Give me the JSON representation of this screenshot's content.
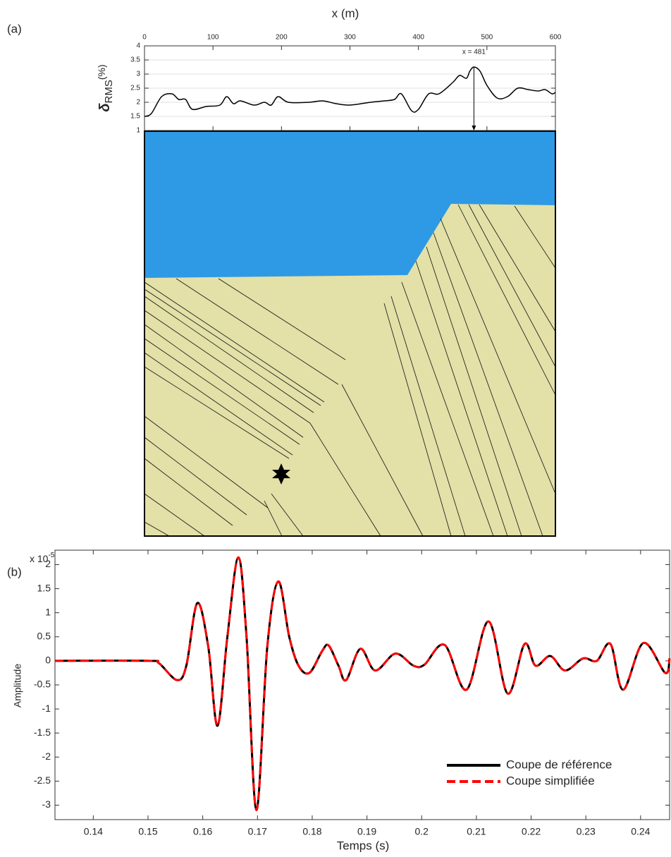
{
  "chart_data": [
    {
      "type": "line",
      "panel_label": "(a)",
      "x_label": "x (m)",
      "y_label_parts": [
        "δ",
        "RMS",
        "(%)"
      ],
      "xlim": [
        0,
        600
      ],
      "xticks": [
        0,
        100,
        200,
        300,
        400,
        500,
        600
      ],
      "ylim": [
        1,
        4
      ],
      "yticks": [
        1,
        1.5,
        2,
        2.5,
        3,
        3.5,
        4
      ],
      "grid": true,
      "annotation": {
        "text": "x = 481",
        "x": 481
      },
      "series": [
        {
          "name": "δRMS",
          "color": "#000000",
          "x": [
            0,
            10,
            25,
            40,
            50,
            60,
            70,
            90,
            110,
            120,
            130,
            140,
            160,
            175,
            185,
            195,
            210,
            240,
            260,
            280,
            300,
            330,
            350,
            365,
            375,
            390,
            400,
            415,
            430,
            450,
            460,
            470,
            475,
            481,
            490,
            500,
            515,
            530,
            545,
            560,
            575,
            585,
            595,
            600
          ],
          "values": [
            1.5,
            1.6,
            2.2,
            2.3,
            2.1,
            2.1,
            1.75,
            1.85,
            1.9,
            2.2,
            1.95,
            2.05,
            1.9,
            2.0,
            1.9,
            2.2,
            2.0,
            2.0,
            2.05,
            1.95,
            1.9,
            2.0,
            2.05,
            2.1,
            2.3,
            1.7,
            1.75,
            2.3,
            2.3,
            2.7,
            2.95,
            2.85,
            3.1,
            3.25,
            3.1,
            2.6,
            2.15,
            2.2,
            2.5,
            2.45,
            2.4,
            2.45,
            2.3,
            2.35
          ]
        }
      ]
    },
    {
      "type": "line",
      "panel_label": "(b)",
      "x_label": "Temps (s)",
      "y_label": "Amplitude",
      "exponent_label": {
        "base": "x 10",
        "exponent": "-5"
      },
      "xlim": [
        0.133,
        0.2453
      ],
      "xticks": [
        0.14,
        0.15,
        0.16,
        0.17,
        0.18,
        0.19,
        0.2,
        0.21,
        0.22,
        0.23,
        0.24
      ],
      "ylim": [
        -3.3,
        2.3
      ],
      "yticks": [
        2,
        1.5,
        1,
        0.5,
        0,
        -0.5,
        -1,
        -1.5,
        -2,
        -2.5,
        -3
      ],
      "legend": "lower right",
      "series": [
        {
          "name": "Coupe de référence",
          "color": "#000000",
          "style": "solid",
          "x": [
            0.133,
            0.15,
            0.152,
            0.1553,
            0.157,
            0.159,
            0.161,
            0.1627,
            0.1645,
            0.1665,
            0.168,
            0.1698,
            0.1718,
            0.1738,
            0.1758,
            0.1775,
            0.1795,
            0.1818,
            0.183,
            0.1848,
            0.1862,
            0.1888,
            0.1915,
            0.1952,
            0.1985,
            0.2005,
            0.2042,
            0.2082,
            0.2122,
            0.2157,
            0.2188,
            0.2208,
            0.2235,
            0.2262,
            0.2295,
            0.232,
            0.2345,
            0.2368,
            0.2405,
            0.2445,
            0.2453
          ],
          "values": [
            0,
            0,
            -0.05,
            -0.4,
            -0.1,
            1.2,
            0.3,
            -1.35,
            0.5,
            2.15,
            0.5,
            -3.1,
            0.3,
            1.65,
            0.5,
            -0.1,
            -0.25,
            0.2,
            0.32,
            -0.1,
            -0.4,
            0.25,
            -0.2,
            0.15,
            -0.1,
            -0.08,
            0.33,
            -0.6,
            0.82,
            -0.68,
            0.35,
            -0.1,
            0.1,
            -0.2,
            0.05,
            0.0,
            0.35,
            -0.6,
            0.37,
            -0.25,
            0.05
          ]
        },
        {
          "name": "Coupe simplifiée",
          "color": "#ff0000",
          "style": "dashed",
          "x": [
            0.133,
            0.15,
            0.152,
            0.1553,
            0.157,
            0.159,
            0.161,
            0.1627,
            0.1645,
            0.1665,
            0.168,
            0.1698,
            0.1718,
            0.1738,
            0.1758,
            0.1775,
            0.1795,
            0.1818,
            0.183,
            0.1848,
            0.1862,
            0.1888,
            0.1915,
            0.1952,
            0.1985,
            0.2005,
            0.2042,
            0.2082,
            0.2122,
            0.2157,
            0.2188,
            0.2208,
            0.2235,
            0.2262,
            0.2295,
            0.232,
            0.2345,
            0.2368,
            0.2405,
            0.2445,
            0.2453
          ],
          "values": [
            0,
            0,
            -0.05,
            -0.4,
            -0.1,
            1.2,
            0.3,
            -1.35,
            0.5,
            2.15,
            0.5,
            -3.1,
            0.3,
            1.65,
            0.5,
            -0.1,
            -0.25,
            0.2,
            0.32,
            -0.1,
            -0.4,
            0.25,
            -0.2,
            0.15,
            -0.1,
            -0.08,
            0.33,
            -0.6,
            0.82,
            -0.68,
            0.35,
            -0.1,
            0.1,
            -0.2,
            0.05,
            0.0,
            0.35,
            -0.6,
            0.37,
            -0.25,
            0.05
          ]
        }
      ]
    }
  ]
}
